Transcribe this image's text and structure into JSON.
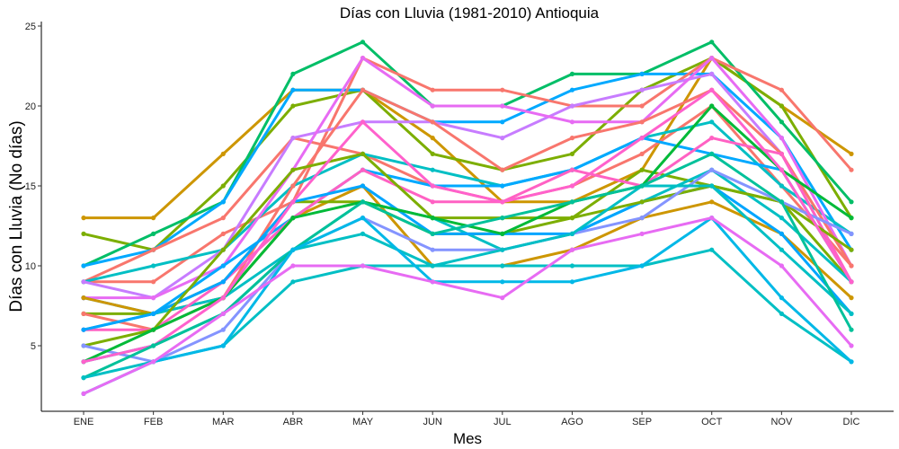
{
  "chart_data": {
    "type": "line",
    "title": "Días con Lluvia (1981-2010)  Antioquia",
    "xlabel": "Mes",
    "ylabel": "Días con Lluvia (No días)",
    "categories": [
      "ENE",
      "FEB",
      "MAR",
      "ABR",
      "MAY",
      "JUN",
      "JUL",
      "AGO",
      "SEP",
      "OCT",
      "NOV",
      "DIC"
    ],
    "ylim": [
      0,
      25
    ],
    "yticks": [
      5,
      10,
      15,
      20,
      25
    ],
    "grid": false,
    "legend": "none",
    "series": [
      {
        "color": "#CD9600",
        "values": [
          13,
          13,
          17,
          21,
          21,
          18,
          14,
          14,
          16,
          23,
          20,
          17
        ]
      },
      {
        "color": "#7CAE00",
        "values": [
          12,
          11,
          15,
          20,
          21,
          17,
          16,
          17,
          21,
          23,
          20,
          13
        ]
      },
      {
        "color": "#00BE67",
        "values": [
          10,
          12,
          14,
          22,
          24,
          20,
          20,
          22,
          22,
          24,
          19,
          14
        ]
      },
      {
        "color": "#00A9FF",
        "values": [
          10,
          11,
          14,
          21,
          21,
          19,
          19,
          21,
          22,
          22,
          18,
          11
        ]
      },
      {
        "color": "#F8766D",
        "values": [
          9,
          11,
          13,
          18,
          17,
          15,
          14,
          15,
          17,
          20,
          15,
          10
        ]
      },
      {
        "color": "#F8766D",
        "values": [
          9,
          9,
          12,
          14,
          23,
          21,
          21,
          20,
          20,
          23,
          21,
          16
        ]
      },
      {
        "color": "#00BFC4",
        "values": [
          9,
          10,
          11,
          15,
          17,
          16,
          15,
          16,
          18,
          19,
          15,
          12
        ]
      },
      {
        "color": "#C77CFF",
        "values": [
          9,
          8,
          11,
          18,
          19,
          19,
          18,
          20,
          21,
          22,
          17,
          9
        ]
      },
      {
        "color": "#E76BF3",
        "values": [
          8,
          8,
          10,
          16,
          23,
          20,
          20,
          19,
          19,
          23,
          18,
          10
        ]
      },
      {
        "color": "#00A9FF",
        "values": [
          8,
          7,
          10,
          13,
          16,
          15,
          15,
          16,
          18,
          17,
          16,
          9
        ]
      },
      {
        "color": "#CD9600",
        "values": [
          8,
          7,
          8,
          13,
          15,
          10,
          10,
          11,
          13,
          14,
          12,
          8
        ]
      },
      {
        "color": "#7CAE00",
        "values": [
          7,
          7,
          9,
          14,
          14,
          12,
          12,
          13,
          16,
          15,
          14,
          9
        ]
      },
      {
        "color": "#F8766D",
        "values": [
          7,
          6,
          8,
          15,
          21,
          19,
          16,
          18,
          19,
          21,
          17,
          10
        ]
      },
      {
        "color": "#00BFC4",
        "values": [
          6,
          7,
          8,
          11,
          14,
          13,
          11,
          12,
          14,
          16,
          13,
          9
        ]
      },
      {
        "color": "#FF61C3",
        "values": [
          6,
          6,
          9,
          13,
          16,
          14,
          14,
          16,
          15,
          18,
          17,
          9
        ]
      },
      {
        "color": "#00A5FF",
        "values": [
          6,
          7,
          9,
          14,
          15,
          12,
          12,
          12,
          14,
          15,
          12,
          7
        ]
      },
      {
        "color": "#7CAE00",
        "values": [
          5,
          6,
          11,
          16,
          17,
          13,
          13,
          13,
          14,
          15,
          14,
          11
        ]
      },
      {
        "color": "#8494FF",
        "values": [
          5,
          4,
          6,
          11,
          13,
          11,
          11,
          12,
          13,
          16,
          14,
          12
        ]
      },
      {
        "color": "#00BA38",
        "values": [
          4,
          6,
          8,
          13,
          14,
          13,
          12,
          14,
          15,
          20,
          16,
          13
        ]
      },
      {
        "color": "#00BFC4",
        "values": [
          4,
          5,
          7,
          11,
          12,
          10,
          11,
          12,
          15,
          15,
          11,
          7
        ]
      },
      {
        "color": "#FF61CC",
        "values": [
          4,
          5,
          8,
          14,
          19,
          15,
          14,
          15,
          18,
          21,
          16,
          9
        ]
      },
      {
        "color": "#00C19A",
        "values": [
          3,
          5,
          7,
          11,
          14,
          12,
          13,
          14,
          15,
          17,
          14,
          6
        ]
      },
      {
        "color": "#00BFC4",
        "values": [
          3,
          4,
          5,
          9,
          10,
          10,
          10,
          10,
          10,
          11,
          7,
          4
        ]
      },
      {
        "color": "#00B8E7",
        "values": [
          2,
          4,
          5,
          11,
          13,
          9,
          9,
          9,
          10,
          13,
          8,
          4
        ]
      },
      {
        "color": "#E76BF3",
        "values": [
          2,
          4,
          7,
          10,
          10,
          9,
          8,
          11,
          12,
          13,
          10,
          5
        ]
      }
    ]
  }
}
